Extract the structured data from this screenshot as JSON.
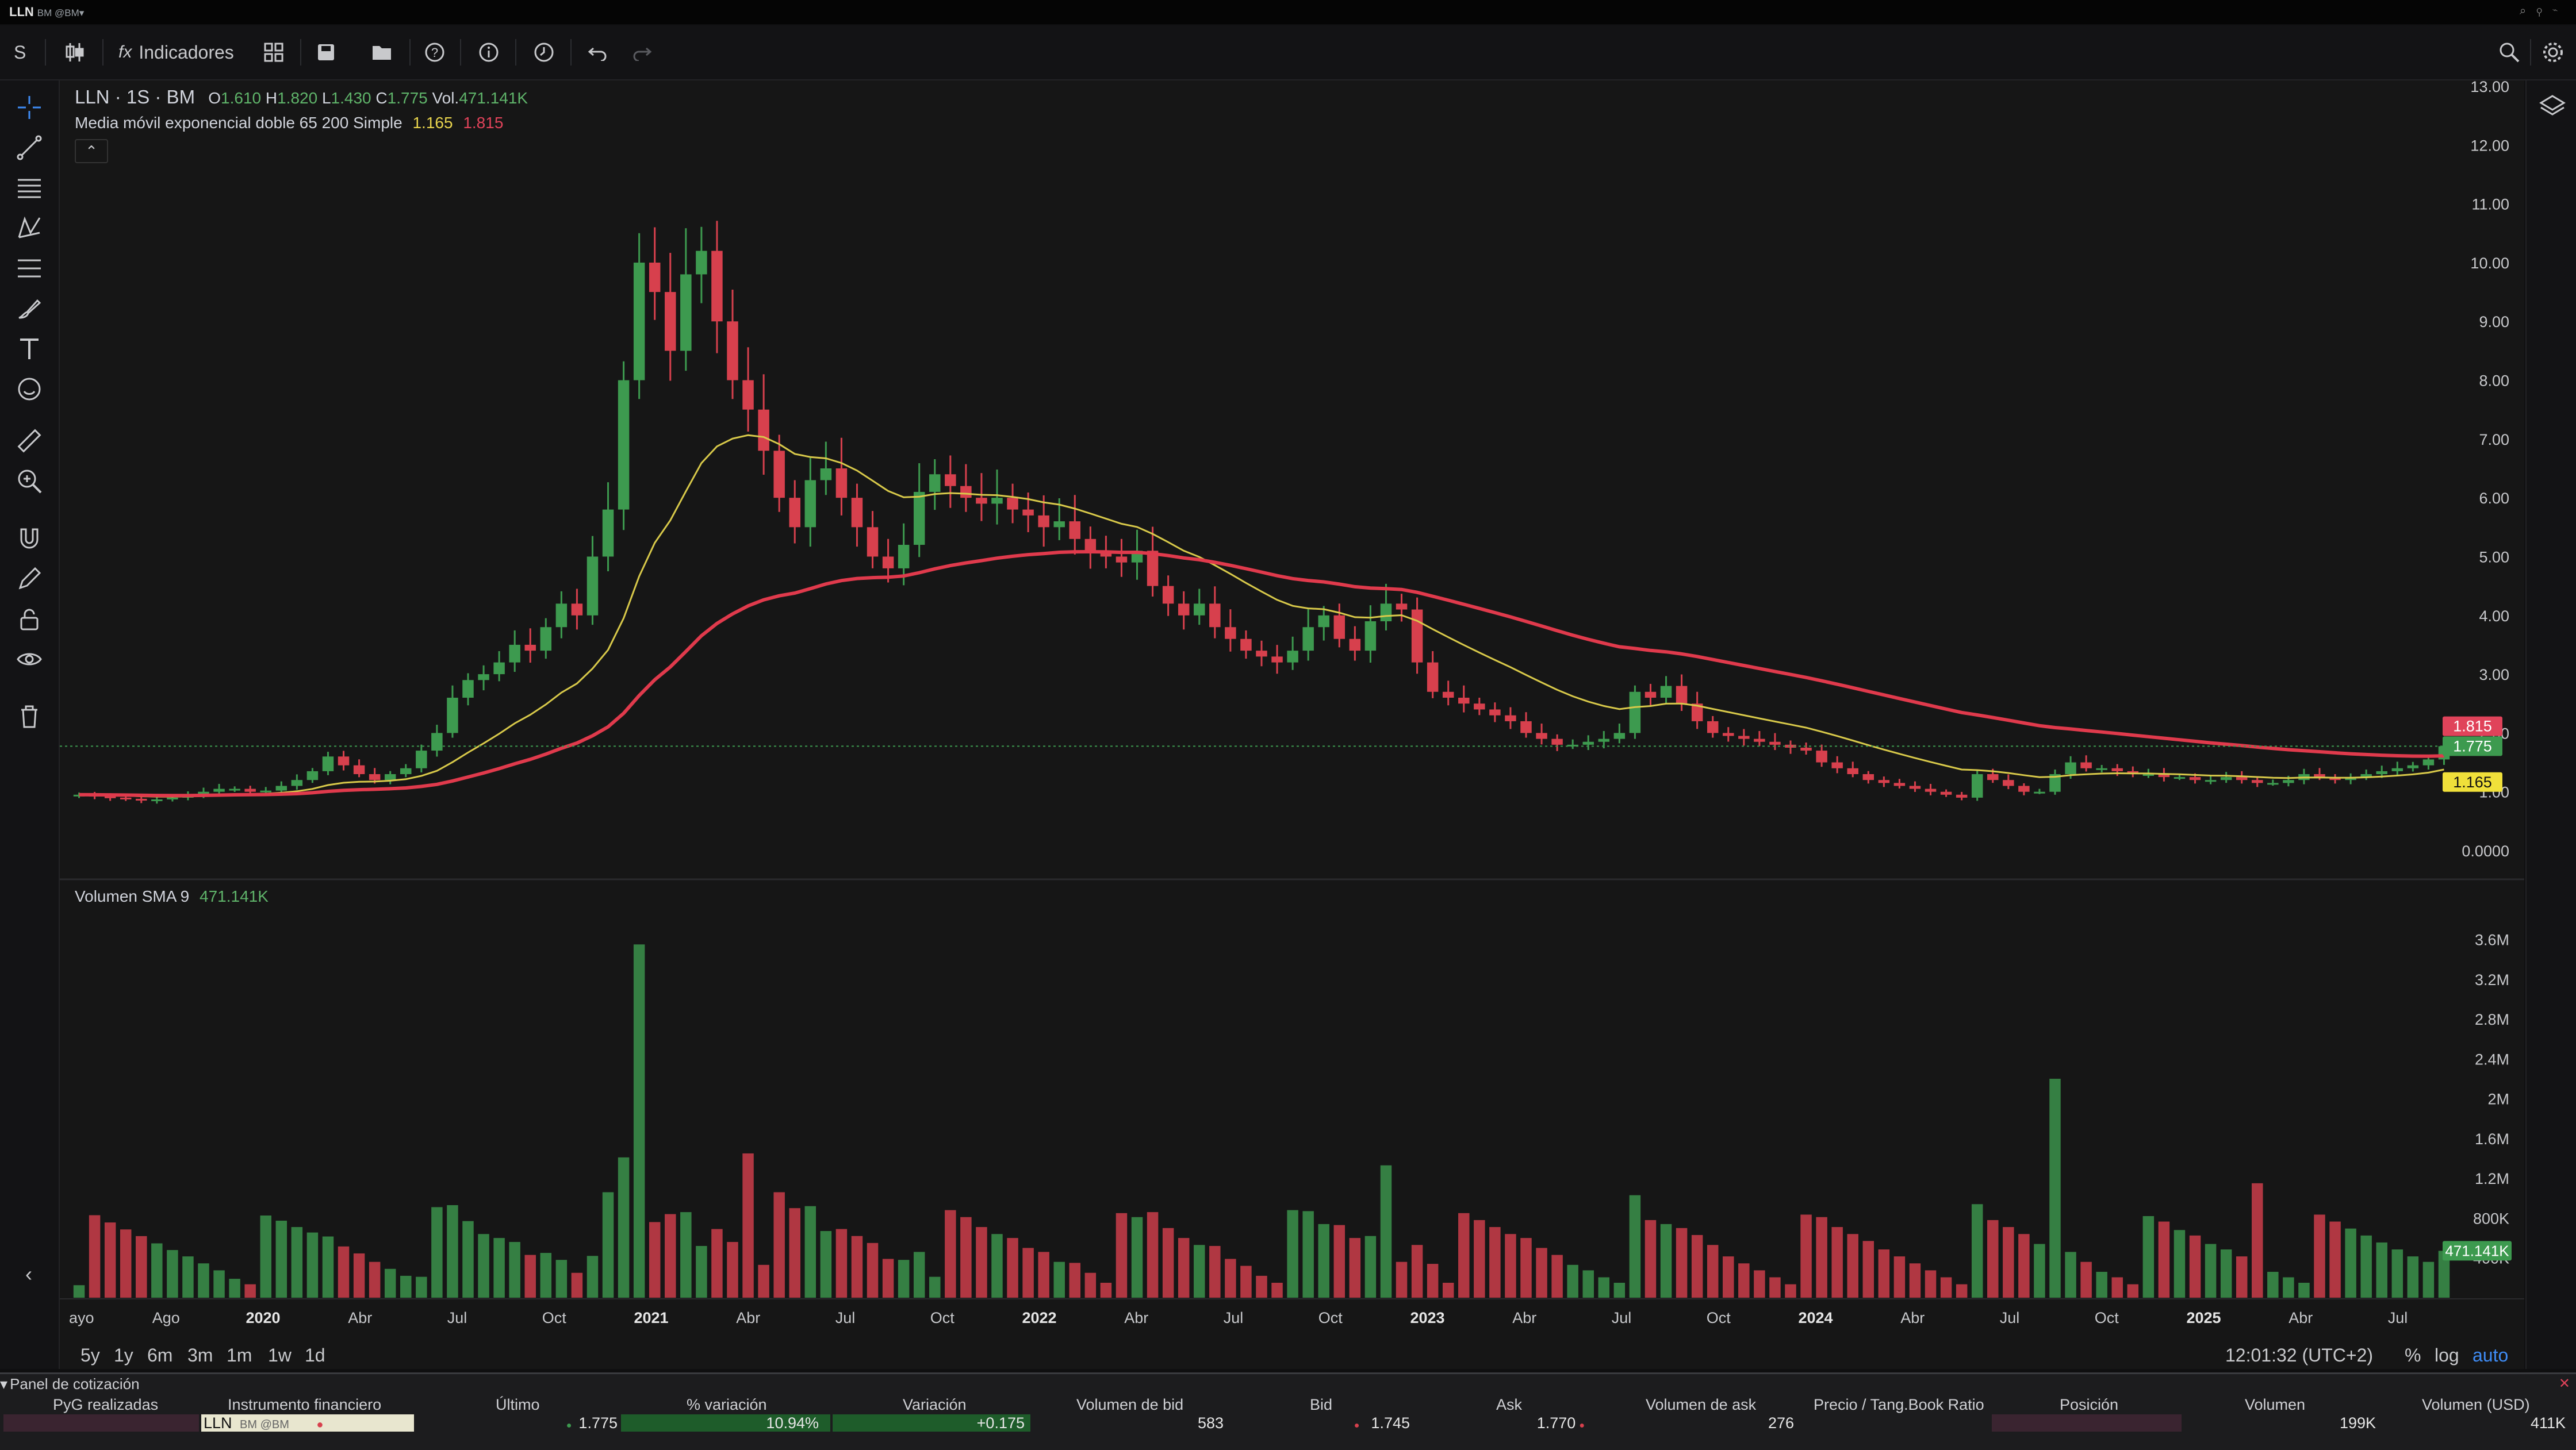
{
  "titlebar": {
    "symbol": "LLN",
    "exchange": "BM @BM▾"
  },
  "toolbar": {
    "symbol_button": "S",
    "indicators_label": "Indicadores"
  },
  "legend": {
    "main_title": "LLN · 1S · BM",
    "o_label": "O",
    "o_value": "1.610",
    "h_label": "H",
    "h_value": "1.820",
    "l_label": "L",
    "l_value": "1.430",
    "c_label": "C",
    "c_value": "1.775",
    "vol_label": "Vol.",
    "vol_value": "471.141K",
    "ma_title": "Media móvil exponencial doble 65 200 Simple",
    "ma_fast": "1.165",
    "ma_slow": "1.815",
    "volume_title": "Volumen SMA 9",
    "volume_value": "471.141K"
  },
  "price_badges": {
    "slow": "1.815",
    "last": "1.775",
    "fast": "1.165",
    "volume": "471.141K"
  },
  "colors": {
    "up": "#3d9a4f",
    "down": "#d7404d",
    "ma_fast": "#d8c94a",
    "ma_slow": "#e03a4c",
    "background": "#161616"
  },
  "bottom": {
    "ranges": [
      "5y",
      "1y",
      "6m",
      "3m",
      "1m",
      "1w",
      "1d"
    ],
    "clock": "12:01:32 (UTC+2)",
    "percent": "%",
    "log": "log",
    "auto": "auto"
  },
  "panel": {
    "title": "Panel de cotización",
    "columns": [
      "PyG realizadas",
      "Instrumento financiero",
      "Último",
      "% variación",
      "Variación",
      "Volumen de bid",
      "Bid",
      "Ask",
      "Volumen de ask",
      "Precio / Tang.Book Ratio",
      "Posición",
      "Volumen",
      "Volumen (USD)"
    ],
    "row": {
      "instrument": "LLN",
      "instrument_exchange": "BM @BM",
      "last": "1.775",
      "pct_change": "10.94%",
      "change": "+0.175",
      "bid_volume": "583",
      "bid": "1.745",
      "ask": "1.770",
      "ask_volume": "276",
      "volume": "199K",
      "volume_usd": "411K"
    }
  },
  "chart_data": [
    {
      "type": "candlestick",
      "title": "LLN · 1S · BM",
      "price_axis_ticks": [
        "13.00",
        "12.00",
        "11.00",
        "10.00",
        "9.00",
        "8.00",
        "7.00",
        "6.00",
        "5.00",
        "4.00",
        "3.00",
        "2.00",
        "1.00",
        "0.0000"
      ],
      "time_axis_ticks": [
        "ayo",
        "Ago",
        "2020",
        "Abr",
        "Jul",
        "Oct",
        "2021",
        "Abr",
        "Jul",
        "Oct",
        "2022",
        "Abr",
        "Jul",
        "Oct",
        "2023",
        "Abr",
        "Jul",
        "Oct",
        "2024",
        "Abr",
        "Jul",
        "Oct",
        "2025",
        "Abr",
        "Jul"
      ],
      "ylim": [
        0,
        13
      ],
      "close_series": [
        0.95,
        0.92,
        0.9,
        0.88,
        0.85,
        0.87,
        0.9,
        0.95,
        1.0,
        1.05,
        1.05,
        1.0,
        1.02,
        1.1,
        1.2,
        1.35,
        1.6,
        1.45,
        1.3,
        1.2,
        1.3,
        1.4,
        1.7,
        2.0,
        2.6,
        2.9,
        3.0,
        3.2,
        3.5,
        3.4,
        3.8,
        4.2,
        4.0,
        5.0,
        5.8,
        8.0,
        10.0,
        9.5,
        8.5,
        9.8,
        10.2,
        9.0,
        8.0,
        7.5,
        6.8,
        6.0,
        5.5,
        6.3,
        6.5,
        6.0,
        5.5,
        5.0,
        4.8,
        5.2,
        6.1,
        6.4,
        6.2,
        6.0,
        5.9,
        6.0,
        5.8,
        5.7,
        5.5,
        5.6,
        5.3,
        5.1,
        5.0,
        4.9,
        5.1,
        4.5,
        4.2,
        4.0,
        4.2,
        3.8,
        3.6,
        3.4,
        3.3,
        3.2,
        3.4,
        3.8,
        4.0,
        3.6,
        3.4,
        3.9,
        4.2,
        4.1,
        3.2,
        2.7,
        2.6,
        2.5,
        2.4,
        2.3,
        2.2,
        2.0,
        1.9,
        1.8,
        1.8,
        1.85,
        1.9,
        2.0,
        2.7,
        2.6,
        2.8,
        2.5,
        2.2,
        2.0,
        1.95,
        1.9,
        1.85,
        1.8,
        1.75,
        1.7,
        1.5,
        1.4,
        1.3,
        1.2,
        1.15,
        1.1,
        1.05,
        1.0,
        0.95,
        0.9,
        1.3,
        1.2,
        1.1,
        1.0,
        1.0,
        1.3,
        1.5,
        1.4,
        1.4,
        1.35,
        1.3,
        1.3,
        1.25,
        1.25,
        1.2,
        1.2,
        1.25,
        1.2,
        1.15,
        1.15,
        1.2,
        1.3,
        1.25,
        1.2,
        1.25,
        1.3,
        1.35,
        1.4,
        1.45,
        1.55,
        1.775
      ],
      "ma_fast_label": "1.165",
      "ma_slow_label": "1.815"
    },
    {
      "type": "bar",
      "title": "Volumen SMA 9",
      "value_axis_ticks": [
        "3.6M",
        "3.2M",
        "2.8M",
        "2.4M",
        "2M",
        "1.6M",
        "1.2M",
        "800K",
        "400K"
      ],
      "ylim": [
        0,
        3800000
      ],
      "last_value": "471.141K",
      "peaks": [
        {
          "period": "Sep 2020",
          "value": 3550000
        },
        {
          "period": "Feb 2024",
          "value": 2200000
        },
        {
          "period": "Oct 2020",
          "value": 1450000
        },
        {
          "period": "Apr 2022",
          "value": 1330000
        },
        {
          "period": "May 2024",
          "value": 1150000
        }
      ]
    }
  ]
}
